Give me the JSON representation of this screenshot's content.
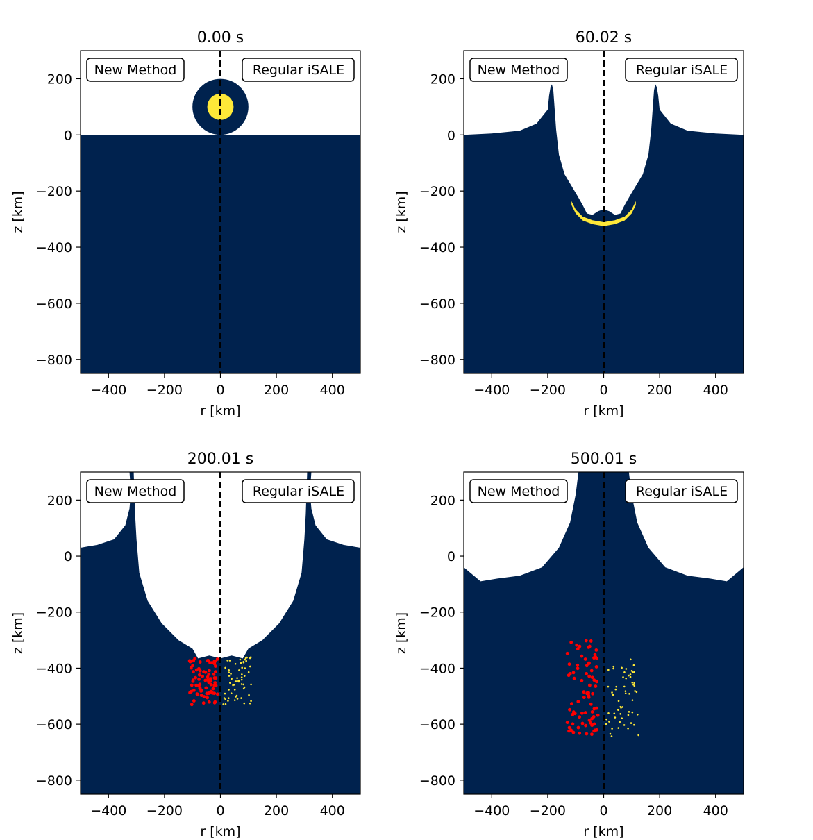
{
  "colors": {
    "target": "#00224e",
    "projectile": "#fee838",
    "tracer_new": "#ff0000",
    "tracer_regular": "#fee838",
    "background": "#ffffff",
    "divider": "#000000"
  },
  "chart_data": [
    {
      "type": "image",
      "title": "0.00 s",
      "xlabel": "r [km]",
      "ylabel": "z [km]",
      "xlim": [
        -500,
        500
      ],
      "ylim": [
        -850,
        300
      ],
      "xticks": [
        -400,
        -200,
        0,
        200,
        400
      ],
      "yticks": [
        200,
        0,
        -200,
        -400,
        -600,
        -800
      ],
      "left_label": "New Method",
      "right_label": "Regular iSALE",
      "divider_r": 0,
      "surface": [
        [
          -500,
          0
        ],
        [
          500,
          0
        ]
      ],
      "projectile": {
        "center_r": 0,
        "center_z": 100,
        "outer_radius_km": 100,
        "core_radius_km": 47
      }
    },
    {
      "type": "image",
      "title": "60.02 s",
      "xlabel": "r [km]",
      "ylabel": "z [km]",
      "xlim": [
        -500,
        500
      ],
      "ylim": [
        -850,
        300
      ],
      "xticks": [
        -400,
        -200,
        0,
        200,
        400
      ],
      "yticks": [
        200,
        0,
        -200,
        -400,
        -600,
        -800
      ],
      "left_label": "New Method",
      "right_label": "Regular iSALE",
      "divider_r": 0,
      "surface": [
        [
          -500,
          0
        ],
        [
          -400,
          5
        ],
        [
          -300,
          15
        ],
        [
          -240,
          40
        ],
        [
          -200,
          90
        ],
        [
          -195,
          140
        ],
        [
          -190,
          170
        ],
        [
          -185,
          180
        ],
        [
          -180,
          160
        ],
        [
          -175,
          90
        ],
        [
          -170,
          20
        ],
        [
          -160,
          -70
        ],
        [
          -140,
          -140
        ],
        [
          -110,
          -190
        ],
        [
          -95,
          -215
        ],
        [
          -75,
          -250
        ],
        [
          -60,
          -280
        ],
        [
          -40,
          -285
        ],
        [
          -20,
          -272
        ],
        [
          0,
          -265
        ],
        [
          20,
          -272
        ],
        [
          40,
          -285
        ],
        [
          60,
          -280
        ],
        [
          75,
          -250
        ],
        [
          95,
          -215
        ],
        [
          110,
          -190
        ],
        [
          140,
          -140
        ],
        [
          160,
          -70
        ],
        [
          170,
          20
        ],
        [
          175,
          90
        ],
        [
          180,
          160
        ],
        [
          185,
          180
        ],
        [
          190,
          170
        ],
        [
          195,
          140
        ],
        [
          200,
          90
        ],
        [
          240,
          40
        ],
        [
          300,
          15
        ],
        [
          400,
          5
        ],
        [
          500,
          0
        ]
      ],
      "projectile_shell": [
        [
          -115,
          -250
        ],
        [
          -100,
          -280
        ],
        [
          -75,
          -305
        ],
        [
          -40,
          -318
        ],
        [
          0,
          -325
        ],
        [
          40,
          -318
        ],
        [
          75,
          -305
        ],
        [
          100,
          -280
        ],
        [
          115,
          -250
        ]
      ]
    },
    {
      "type": "image",
      "title": "200.01 s",
      "xlabel": "r [km]",
      "ylabel": "z [km]",
      "xlim": [
        -500,
        500
      ],
      "ylim": [
        -850,
        300
      ],
      "xticks": [
        -400,
        -200,
        0,
        200,
        400
      ],
      "yticks": [
        200,
        0,
        -200,
        -400,
        -600,
        -800
      ],
      "left_label": "New Method",
      "right_label": "Regular iSALE",
      "divider_r": 0,
      "surface": [
        [
          -500,
          30
        ],
        [
          -440,
          40
        ],
        [
          -380,
          60
        ],
        [
          -340,
          110
        ],
        [
          -325,
          170
        ],
        [
          -320,
          230
        ],
        [
          -325,
          300
        ],
        [
          -310,
          300
        ],
        [
          -305,
          150
        ],
        [
          -300,
          60
        ],
        [
          -290,
          -60
        ],
        [
          -260,
          -160
        ],
        [
          -210,
          -240
        ],
        [
          -150,
          -300
        ],
        [
          -100,
          -330
        ],
        [
          -80,
          -365
        ],
        [
          -40,
          -355
        ],
        [
          0,
          -365
        ],
        [
          40,
          -355
        ],
        [
          80,
          -365
        ],
        [
          100,
          -330
        ],
        [
          150,
          -300
        ],
        [
          210,
          -240
        ],
        [
          260,
          -160
        ],
        [
          290,
          -60
        ],
        [
          300,
          60
        ],
        [
          305,
          150
        ],
        [
          310,
          300
        ],
        [
          325,
          300
        ],
        [
          320,
          230
        ],
        [
          325,
          170
        ],
        [
          340,
          110
        ],
        [
          380,
          60
        ],
        [
          440,
          40
        ],
        [
          500,
          30
        ]
      ],
      "tracer_region_new": {
        "r_range": [
          -110,
          -10
        ],
        "z_range": [
          -530,
          -360
        ]
      },
      "tracer_region_regular": {
        "r_range": [
          10,
          110
        ],
        "z_range": [
          -530,
          -360
        ]
      }
    },
    {
      "type": "image",
      "title": "500.01 s",
      "xlabel": "r [km]",
      "ylabel": "z [km]",
      "xlim": [
        -500,
        500
      ],
      "ylim": [
        -850,
        300
      ],
      "xticks": [
        -400,
        -200,
        0,
        200,
        400
      ],
      "yticks": [
        200,
        0,
        -200,
        -400,
        -600,
        -800
      ],
      "left_label": "New Method",
      "right_label": "Regular iSALE",
      "divider_r": 0,
      "surface": [
        [
          -500,
          -40
        ],
        [
          -440,
          -90
        ],
        [
          -380,
          -80
        ],
        [
          -300,
          -70
        ],
        [
          -220,
          -40
        ],
        [
          -160,
          30
        ],
        [
          -120,
          120
        ],
        [
          -100,
          220
        ],
        [
          -90,
          300
        ],
        [
          90,
          300
        ],
        [
          100,
          220
        ],
        [
          120,
          120
        ],
        [
          160,
          30
        ],
        [
          220,
          -40
        ],
        [
          300,
          -70
        ],
        [
          380,
          -80
        ],
        [
          440,
          -90
        ],
        [
          500,
          -40
        ]
      ],
      "tracer_region_new": {
        "r_range": [
          -130,
          -20
        ],
        "z_range": [
          -640,
          -290
        ]
      },
      "tracer_region_regular": {
        "r_range": [
          5,
          125
        ],
        "z_range": [
          -650,
          -360
        ]
      }
    }
  ]
}
